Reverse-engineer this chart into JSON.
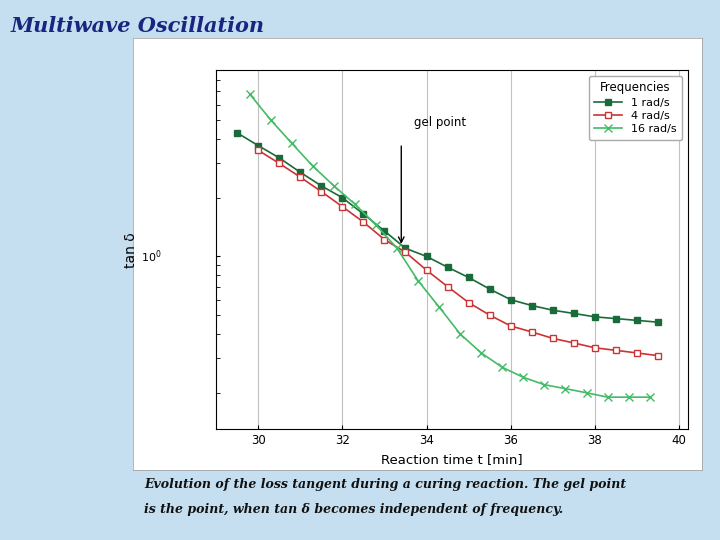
{
  "title": "Multiwave Oscillation",
  "subtitle_line1": "Evolution of the loss tangent during a curing reaction. The gel point",
  "subtitle_line2": "is the point, when tan δ becomes independent of frequency.",
  "xlabel": "Reaction time t [min]",
  "ylabel": "tan δ",
  "background_color": "#c5dff0",
  "xlim": [
    29.0,
    40.2
  ],
  "ylim_log": [
    0.13,
    9.0
  ],
  "gel_point_x": 33.4,
  "xticks": [
    30,
    32,
    34,
    36,
    38,
    40
  ],
  "series_1rad": {
    "x": [
      29.5,
      30.0,
      30.5,
      31.0,
      31.5,
      32.0,
      32.5,
      33.0,
      33.5,
      34.0,
      34.5,
      35.0,
      35.5,
      36.0,
      36.5,
      37.0,
      37.5,
      38.0,
      38.5,
      39.0,
      39.5
    ],
    "y": [
      4.3,
      3.7,
      3.2,
      2.7,
      2.3,
      2.0,
      1.65,
      1.35,
      1.1,
      1.0,
      0.88,
      0.78,
      0.68,
      0.6,
      0.56,
      0.53,
      0.51,
      0.49,
      0.48,
      0.47,
      0.46
    ],
    "color": "#1a6b3a",
    "marker": "s",
    "label": "1 rad/s",
    "linestyle": "-"
  },
  "series_4rad": {
    "x": [
      30.0,
      30.5,
      31.0,
      31.5,
      32.0,
      32.5,
      33.0,
      33.5,
      34.0,
      34.5,
      35.0,
      35.5,
      36.0,
      36.5,
      37.0,
      37.5,
      38.0,
      38.5,
      39.0,
      39.5
    ],
    "y": [
      3.5,
      3.0,
      2.55,
      2.15,
      1.8,
      1.5,
      1.22,
      1.05,
      0.85,
      0.7,
      0.58,
      0.5,
      0.44,
      0.41,
      0.38,
      0.36,
      0.34,
      0.33,
      0.32,
      0.31
    ],
    "color": "#cc3333",
    "marker": "s",
    "label": "4 rad/s",
    "linestyle": "-"
  },
  "series_16rad": {
    "x": [
      29.8,
      30.3,
      30.8,
      31.3,
      31.8,
      32.3,
      32.8,
      33.3,
      33.8,
      34.3,
      34.8,
      35.3,
      35.8,
      36.3,
      36.8,
      37.3,
      37.8,
      38.3,
      38.8,
      39.3
    ],
    "y": [
      6.8,
      5.0,
      3.8,
      2.9,
      2.3,
      1.85,
      1.45,
      1.1,
      0.75,
      0.55,
      0.4,
      0.32,
      0.27,
      0.24,
      0.22,
      0.21,
      0.2,
      0.19,
      0.19,
      0.19
    ],
    "color": "#44bb66",
    "marker": "x",
    "label": "16 rad/s",
    "linestyle": "-"
  },
  "legend_title": "Frequencies",
  "grid_color": "#c0c0c0",
  "vline_positions": [
    30,
    32,
    34,
    36,
    38,
    40
  ]
}
